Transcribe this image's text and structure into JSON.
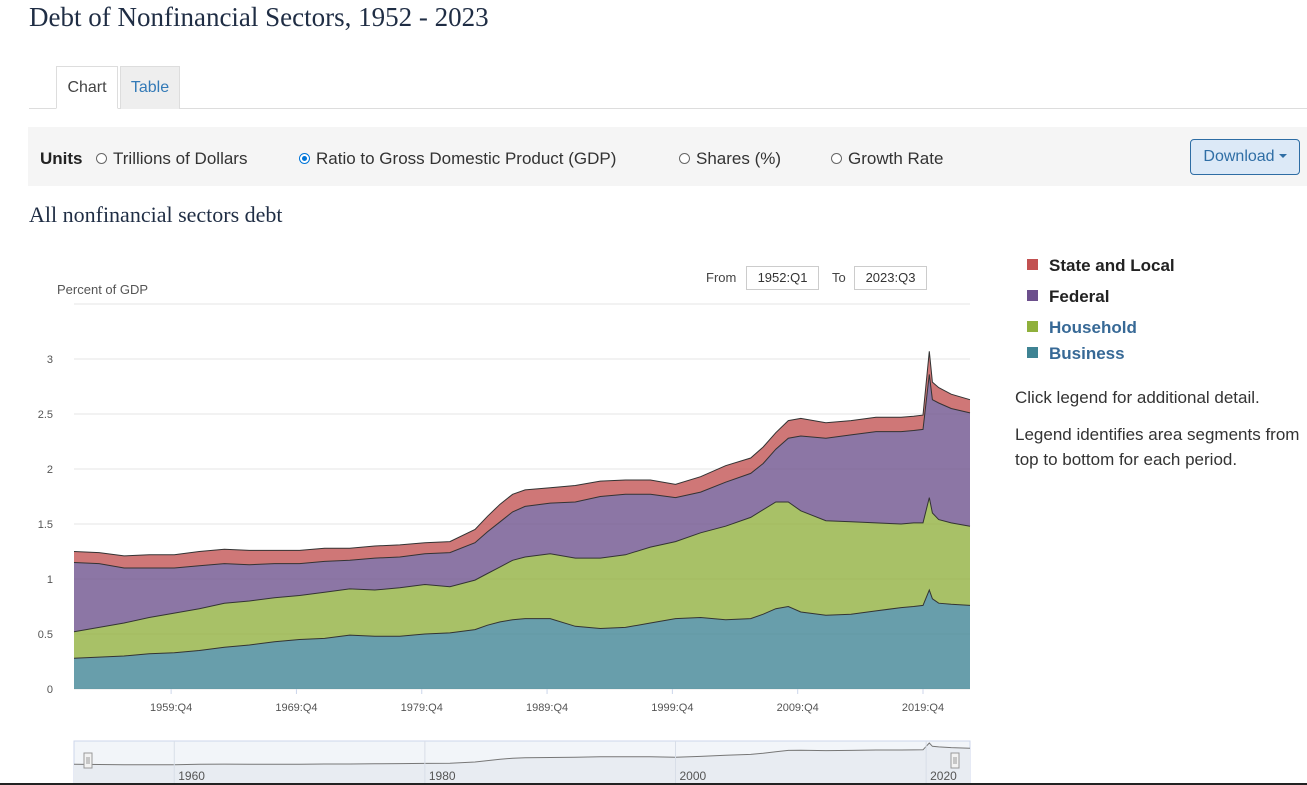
{
  "page_title": "Debt of Nonfinancial Sectors, 1952 - 2023",
  "tabs": [
    {
      "label": "Chart",
      "active": true
    },
    {
      "label": "Table",
      "active": false
    }
  ],
  "units": {
    "label": "Units",
    "options": [
      {
        "label": "Trillions of Dollars",
        "selected": false
      },
      {
        "label": "Ratio to Gross Domestic Product (GDP)",
        "selected": true
      },
      {
        "label": "Shares (%)",
        "selected": false
      },
      {
        "label": "Growth Rate",
        "selected": false
      }
    ]
  },
  "download_label": "Download",
  "chart_subtitle": "All nonfinancial sectors debt",
  "range": {
    "from_label": "From",
    "from_value": "1952:Q1",
    "to_label": "To",
    "to_value": "2023:Q3"
  },
  "legend": {
    "items": [
      {
        "label": "State and Local",
        "color": "#c25151",
        "style": "plain"
      },
      {
        "label": "Federal",
        "color": "#6c4f8c",
        "style": "plain"
      },
      {
        "label": "Household",
        "color": "#8fb03c",
        "style": "link"
      },
      {
        "label": "Business",
        "color": "#3e8393",
        "style": "link"
      }
    ],
    "note_1": "Click legend for additional detail.",
    "note_2": "Legend identifies area segments from top to bottom for each period."
  },
  "chart_data": {
    "type": "area",
    "stacked": true,
    "title": "All nonfinancial sectors debt",
    "ylabel": "Percent of GDP",
    "ylim": [
      0,
      3.5
    ],
    "y_ticks": [
      0,
      0.5,
      1,
      1.5,
      2,
      2.5,
      3
    ],
    "y_tick_labels": [
      "0",
      "0.5",
      "1",
      "1.5",
      "2",
      "2.5",
      "3"
    ],
    "xlim": [
      1952.0,
      2023.5
    ],
    "x_ticks": [
      1959.75,
      1969.75,
      1979.75,
      1989.75,
      1999.75,
      2009.75,
      2019.75
    ],
    "x_tick_labels": [
      "1959:Q4",
      "1969:Q4",
      "1979:Q4",
      "1989:Q4",
      "1999:Q4",
      "2009:Q4",
      "2019:Q4"
    ],
    "x": [
      1952,
      1954,
      1956,
      1958,
      1960,
      1962,
      1964,
      1966,
      1968,
      1970,
      1972,
      1974,
      1976,
      1978,
      1980,
      1982,
      1984,
      1985,
      1986,
      1987,
      1988,
      1990,
      1992,
      1994,
      1996,
      1998,
      2000,
      2002,
      2004,
      2006,
      2007,
      2008,
      2009,
      2010,
      2012,
      2014,
      2016,
      2018,
      2019,
      2019.75,
      2020.25,
      2020.5,
      2021,
      2022,
      2023.5
    ],
    "series": [
      {
        "name": "Business",
        "color": "#3e8393",
        "values": [
          0.28,
          0.29,
          0.3,
          0.32,
          0.33,
          0.35,
          0.38,
          0.4,
          0.43,
          0.45,
          0.46,
          0.49,
          0.48,
          0.48,
          0.5,
          0.51,
          0.54,
          0.58,
          0.61,
          0.63,
          0.64,
          0.64,
          0.57,
          0.55,
          0.56,
          0.6,
          0.64,
          0.65,
          0.63,
          0.64,
          0.68,
          0.73,
          0.75,
          0.7,
          0.67,
          0.68,
          0.71,
          0.74,
          0.75,
          0.76,
          0.9,
          0.82,
          0.78,
          0.77,
          0.76
        ]
      },
      {
        "name": "Household",
        "color": "#8fb03c",
        "values": [
          0.24,
          0.27,
          0.3,
          0.33,
          0.36,
          0.38,
          0.4,
          0.4,
          0.4,
          0.4,
          0.42,
          0.42,
          0.42,
          0.44,
          0.45,
          0.42,
          0.45,
          0.47,
          0.5,
          0.54,
          0.56,
          0.59,
          0.62,
          0.64,
          0.66,
          0.69,
          0.7,
          0.77,
          0.85,
          0.92,
          0.95,
          0.97,
          0.95,
          0.92,
          0.86,
          0.84,
          0.8,
          0.76,
          0.76,
          0.75,
          0.84,
          0.78,
          0.76,
          0.74,
          0.72
        ]
      },
      {
        "name": "Federal",
        "color": "#6c4f8c",
        "values": [
          0.63,
          0.58,
          0.5,
          0.45,
          0.41,
          0.39,
          0.36,
          0.33,
          0.31,
          0.29,
          0.28,
          0.26,
          0.29,
          0.28,
          0.28,
          0.31,
          0.34,
          0.38,
          0.41,
          0.44,
          0.46,
          0.46,
          0.51,
          0.56,
          0.55,
          0.48,
          0.4,
          0.37,
          0.4,
          0.4,
          0.42,
          0.48,
          0.58,
          0.68,
          0.75,
          0.79,
          0.83,
          0.84,
          0.84,
          0.85,
          1.12,
          1.03,
          1.06,
          1.04,
          1.03
        ]
      },
      {
        "name": "State and Local",
        "color": "#c25151",
        "values": [
          0.1,
          0.1,
          0.11,
          0.12,
          0.12,
          0.13,
          0.13,
          0.13,
          0.12,
          0.12,
          0.12,
          0.11,
          0.11,
          0.11,
          0.1,
          0.1,
          0.12,
          0.14,
          0.16,
          0.16,
          0.15,
          0.14,
          0.15,
          0.14,
          0.13,
          0.13,
          0.12,
          0.14,
          0.15,
          0.14,
          0.15,
          0.15,
          0.16,
          0.16,
          0.14,
          0.13,
          0.13,
          0.13,
          0.13,
          0.13,
          0.21,
          0.16,
          0.14,
          0.13,
          0.12
        ]
      }
    ],
    "navigator": {
      "x_tick_labels": [
        "1960",
        "1980",
        "2000",
        "2020"
      ],
      "x_ticks": [
        1960,
        1980,
        2000,
        2020
      ]
    }
  }
}
